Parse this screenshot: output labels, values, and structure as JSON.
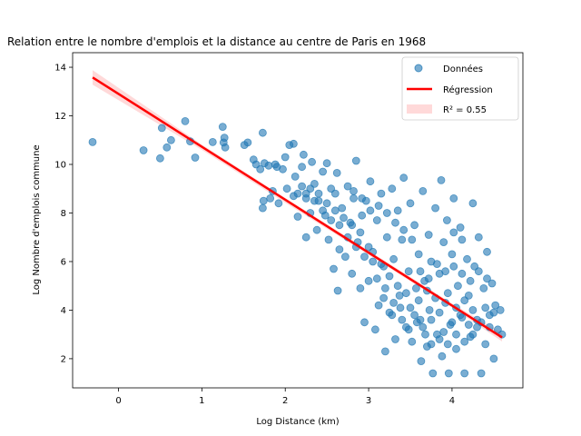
{
  "chart_data": {
    "type": "scatter",
    "title": "Relation entre le nombre d'emplois et la distance au centre de Paris en 1968",
    "xlabel": "Log Distance (km)",
    "ylabel": "Log Nombre d'emplois commune",
    "xlim": [
      -0.55,
      4.85
    ],
    "ylim": [
      0.8,
      14.6
    ],
    "xticks": [
      0,
      1,
      2,
      3,
      4
    ],
    "yticks": [
      2,
      4,
      6,
      8,
      10,
      12,
      14
    ],
    "grid": false,
    "legend_position": "top-right",
    "series": [
      {
        "name": "Données",
        "kind": "scatter",
        "color": "#1f77b4",
        "points": [
          [
            -0.31,
            10.92
          ],
          [
            0.3,
            10.58
          ],
          [
            0.5,
            10.25
          ],
          [
            0.52,
            11.5
          ],
          [
            0.58,
            10.7
          ],
          [
            0.63,
            11.0
          ],
          [
            0.8,
            11.78
          ],
          [
            0.86,
            10.95
          ],
          [
            0.92,
            10.28
          ],
          [
            1.13,
            10.92
          ],
          [
            1.25,
            11.55
          ],
          [
            1.27,
            11.1
          ],
          [
            1.26,
            10.9
          ],
          [
            1.28,
            10.7
          ],
          [
            1.51,
            10.8
          ],
          [
            1.55,
            10.9
          ],
          [
            1.62,
            10.2
          ],
          [
            1.65,
            10.0
          ],
          [
            1.7,
            9.8
          ],
          [
            1.73,
            11.3
          ],
          [
            1.75,
            10.05
          ],
          [
            1.73,
            8.2
          ],
          [
            1.74,
            8.5
          ],
          [
            1.8,
            9.95
          ],
          [
            1.82,
            8.6
          ],
          [
            1.85,
            8.9
          ],
          [
            1.88,
            10.0
          ],
          [
            1.9,
            9.9
          ],
          [
            1.92,
            8.4
          ],
          [
            1.97,
            9.8
          ],
          [
            2.0,
            10.3
          ],
          [
            2.02,
            9.0
          ],
          [
            2.05,
            10.8
          ],
          [
            2.1,
            10.85
          ],
          [
            2.1,
            8.7
          ],
          [
            2.12,
            9.5
          ],
          [
            2.15,
            7.85
          ],
          [
            2.2,
            9.9
          ],
          [
            2.22,
            10.4
          ],
          [
            2.25,
            8.8
          ],
          [
            2.25,
            7.0
          ],
          [
            2.3,
            8.0
          ],
          [
            2.32,
            10.1
          ],
          [
            2.35,
            9.2
          ],
          [
            2.38,
            7.3
          ],
          [
            2.4,
            8.5
          ],
          [
            2.45,
            9.7
          ],
          [
            2.48,
            7.9
          ],
          [
            2.5,
            10.05
          ],
          [
            2.52,
            6.9
          ],
          [
            2.55,
            9.0
          ],
          [
            2.58,
            5.7
          ],
          [
            2.6,
            8.8
          ],
          [
            2.62,
            9.65
          ],
          [
            2.63,
            4.8
          ],
          [
            2.65,
            6.5
          ],
          [
            2.68,
            8.2
          ],
          [
            2.72,
            6.2
          ],
          [
            2.75,
            9.1
          ],
          [
            2.78,
            7.6
          ],
          [
            2.8,
            5.5
          ],
          [
            2.82,
            8.6
          ],
          [
            2.85,
            10.15
          ],
          [
            2.87,
            6.8
          ],
          [
            2.9,
            4.9
          ],
          [
            2.92,
            7.9
          ],
          [
            2.95,
            3.5
          ],
          [
            2.97,
            8.5
          ],
          [
            3.0,
            5.2
          ],
          [
            3.02,
            9.3
          ],
          [
            3.05,
            6.4
          ],
          [
            3.08,
            3.2
          ],
          [
            3.1,
            7.7
          ],
          [
            3.12,
            4.2
          ],
          [
            3.15,
            8.8
          ],
          [
            3.18,
            5.8
          ],
          [
            3.2,
            2.3
          ],
          [
            3.22,
            7.0
          ],
          [
            3.25,
            3.9
          ],
          [
            3.28,
            9.0
          ],
          [
            3.3,
            6.1
          ],
          [
            3.32,
            2.8
          ],
          [
            3.35,
            8.1
          ],
          [
            3.37,
            4.6
          ],
          [
            3.4,
            6.9
          ],
          [
            3.42,
            9.45
          ],
          [
            3.45,
            3.3
          ],
          [
            3.48,
            5.6
          ],
          [
            3.5,
            8.4
          ],
          [
            3.52,
            2.7
          ],
          [
            3.55,
            7.5
          ],
          [
            3.57,
            4.9
          ],
          [
            3.6,
            6.3
          ],
          [
            3.62,
            3.6
          ],
          [
            3.63,
            1.9
          ],
          [
            3.65,
            8.9
          ],
          [
            3.67,
            5.2
          ],
          [
            3.7,
            2.5
          ],
          [
            3.72,
            7.1
          ],
          [
            3.73,
            4.0
          ],
          [
            3.75,
            6.0
          ],
          [
            3.77,
            1.4
          ],
          [
            3.8,
            8.2
          ],
          [
            3.82,
            3.0
          ],
          [
            3.85,
            5.5
          ],
          [
            3.87,
            9.35
          ],
          [
            3.88,
            2.1
          ],
          [
            3.9,
            6.8
          ],
          [
            3.92,
            4.3
          ],
          [
            3.94,
            7.7
          ],
          [
            3.96,
            1.4
          ],
          [
            3.98,
            3.4
          ],
          [
            4.0,
            6.3
          ],
          [
            4.02,
            8.6
          ],
          [
            4.05,
            2.4
          ],
          [
            4.07,
            5.0
          ],
          [
            4.1,
            7.4
          ],
          [
            4.12,
            3.7
          ],
          [
            4.15,
            1.4
          ],
          [
            4.18,
            6.1
          ],
          [
            4.2,
            4.6
          ],
          [
            4.22,
            2.9
          ],
          [
            4.25,
            8.4
          ],
          [
            4.27,
            5.8
          ],
          [
            4.3,
            3.3
          ],
          [
            4.32,
            7.0
          ],
          [
            4.35,
            1.4
          ],
          [
            4.38,
            4.9
          ],
          [
            4.4,
            2.6
          ],
          [
            4.42,
            6.4
          ],
          [
            4.45,
            3.8
          ],
          [
            4.48,
            5.1
          ],
          [
            4.5,
            2.0
          ],
          [
            4.52,
            4.2
          ],
          [
            4.55,
            3.2
          ],
          [
            4.58,
            4.0
          ],
          [
            4.6,
            3.0
          ],
          [
            3.65,
            3.3
          ],
          [
            3.7,
            4.8
          ],
          [
            3.75,
            3.6
          ],
          [
            3.8,
            4.5
          ],
          [
            3.85,
            3.9
          ],
          [
            3.9,
            3.1
          ],
          [
            3.95,
            4.7
          ],
          [
            4.0,
            3.5
          ],
          [
            4.05,
            4.1
          ],
          [
            4.1,
            3.8
          ],
          [
            4.15,
            4.4
          ],
          [
            4.2,
            3.4
          ],
          [
            4.25,
            4.0
          ],
          [
            4.3,
            3.6
          ],
          [
            3.6,
            4.4
          ],
          [
            3.55,
            3.8
          ],
          [
            3.5,
            4.1
          ],
          [
            3.45,
            4.7
          ],
          [
            3.4,
            3.6
          ],
          [
            3.35,
            5.0
          ],
          [
            3.3,
            4.3
          ],
          [
            3.25,
            5.4
          ],
          [
            3.2,
            4.9
          ],
          [
            3.15,
            5.9
          ],
          [
            3.1,
            5.3
          ],
          [
            3.05,
            6.0
          ],
          [
            3.0,
            6.6
          ],
          [
            2.95,
            6.2
          ],
          [
            2.9,
            7.2
          ],
          [
            2.85,
            6.6
          ],
          [
            2.8,
            7.5
          ],
          [
            2.75,
            7.0
          ],
          [
            2.7,
            7.8
          ],
          [
            2.65,
            7.5
          ],
          [
            2.6,
            8.1
          ],
          [
            2.55,
            7.7
          ],
          [
            2.5,
            8.4
          ],
          [
            2.45,
            8.1
          ],
          [
            2.4,
            8.8
          ],
          [
            2.35,
            8.5
          ],
          [
            2.3,
            9.0
          ],
          [
            2.25,
            8.6
          ],
          [
            2.2,
            9.1
          ],
          [
            2.15,
            8.8
          ],
          [
            4.35,
            3.5
          ],
          [
            4.4,
            4.1
          ],
          [
            4.45,
            3.3
          ],
          [
            4.5,
            3.9
          ],
          [
            4.25,
            3.0
          ],
          [
            4.15,
            2.7
          ],
          [
            4.05,
            3.0
          ],
          [
            3.95,
            2.6
          ],
          [
            3.85,
            2.8
          ],
          [
            3.75,
            2.6
          ],
          [
            3.68,
            3.0
          ],
          [
            3.58,
            3.5
          ],
          [
            3.48,
            3.2
          ],
          [
            3.38,
            4.1
          ],
          [
            3.28,
            3.8
          ],
          [
            3.18,
            4.5
          ],
          [
            3.62,
            5.6
          ],
          [
            3.72,
            5.3
          ],
          [
            3.82,
            5.9
          ],
          [
            3.92,
            5.6
          ],
          [
            4.02,
            5.8
          ],
          [
            4.12,
            5.5
          ],
          [
            4.22,
            5.2
          ],
          [
            4.32,
            5.6
          ],
          [
            4.42,
            5.3
          ],
          [
            4.02,
            7.2
          ],
          [
            4.12,
            6.9
          ],
          [
            3.52,
            6.9
          ],
          [
            3.42,
            7.3
          ],
          [
            3.32,
            7.6
          ],
          [
            3.22,
            8.0
          ],
          [
            3.12,
            8.3
          ],
          [
            3.02,
            8.1
          ],
          [
            2.92,
            8.6
          ],
          [
            2.82,
            8.9
          ]
        ]
      },
      {
        "name": "Régression",
        "kind": "line",
        "color": "#ff0000",
        "x": [
          -0.31,
          4.6
        ],
        "y": [
          13.58,
          2.88
        ]
      },
      {
        "name": "R² = 0.55",
        "kind": "band",
        "color": "#ffcccc",
        "x": [
          -0.31,
          1.0,
          2.0,
          3.0,
          4.0,
          4.6
        ],
        "upper": [
          13.88,
          10.82,
          8.62,
          6.45,
          4.28,
          3.05
        ],
        "lower": [
          13.28,
          10.6,
          8.42,
          6.28,
          4.1,
          2.71
        ]
      }
    ]
  }
}
